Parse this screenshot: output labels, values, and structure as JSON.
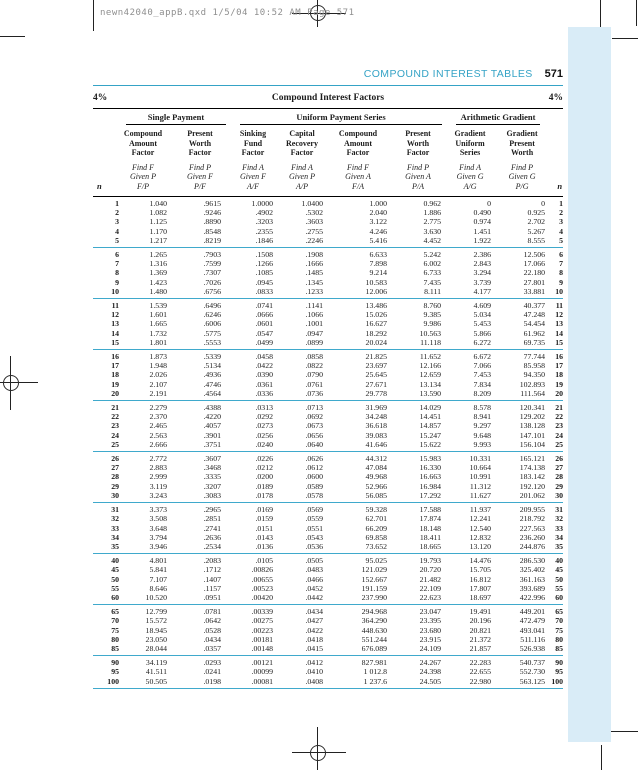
{
  "page": {
    "slug": "newn42040_appB.qxd 1/5/04 10:52 AM Page 571",
    "running_head": "COMPOUND INTEREST TABLES",
    "page_number": "571",
    "rate_left": "4%",
    "rate_right": "4%",
    "table_title": "Compound Interest Factors"
  },
  "colors": {
    "teal_accent": "#35a3c6",
    "separator_teal": "#3fa9cc",
    "sidebar_tab": "#d9ecf7",
    "slug_gray": "#8f8f8f",
    "text": "#1c1c1c"
  },
  "table": {
    "n_label": "n",
    "groups": [
      {
        "label": "Single Payment"
      },
      {
        "label": "Uniform Payment Series"
      },
      {
        "label": "Arithmetic Gradient"
      }
    ],
    "columns": [
      {
        "key": "fp",
        "name": [
          "Compound",
          "Amount",
          "Factor"
        ],
        "find": [
          "Find F",
          "Given P",
          "F/P"
        ]
      },
      {
        "key": "pf",
        "name": [
          "Present",
          "Worth",
          "Factor"
        ],
        "find": [
          "Find P",
          "Given F",
          "P/F"
        ]
      },
      {
        "key": "af",
        "name": [
          "Sinking",
          "Fund",
          "Factor"
        ],
        "find": [
          "Find A",
          "Given F",
          "A/F"
        ]
      },
      {
        "key": "ap",
        "name": [
          "Capital",
          "Recovery",
          "Factor"
        ],
        "find": [
          "Find A",
          "Given P",
          "A/P"
        ]
      },
      {
        "key": "fa",
        "name": [
          "Compound",
          "Amount",
          "Factor"
        ],
        "find": [
          "Find F",
          "Given A",
          "F/A"
        ]
      },
      {
        "key": "pa",
        "name": [
          "Present",
          "Worth",
          "Factor"
        ],
        "find": [
          "Find P",
          "Given A",
          "P/A"
        ]
      },
      {
        "key": "ag",
        "name": [
          "Gradient",
          "Uniform",
          "Series"
        ],
        "find": [
          "Find A",
          "Given G",
          "A/G"
        ]
      },
      {
        "key": "pg",
        "name": [
          "Gradient",
          "Present",
          "Worth"
        ],
        "find": [
          "Find P",
          "Given G",
          "P/G"
        ]
      }
    ],
    "row_groups": [
      [
        [
          "1",
          "1.040",
          ".9615",
          "1.0000",
          "1.0400",
          "1.000",
          "0.962",
          "0",
          "0"
        ],
        [
          "2",
          "1.082",
          ".9246",
          ".4902",
          ".5302",
          "2.040",
          "1.886",
          "0.490",
          "0.925"
        ],
        [
          "3",
          "1.125",
          ".8890",
          ".3203",
          ".3603",
          "3.122",
          "2.775",
          "0.974",
          "2.702"
        ],
        [
          "4",
          "1.170",
          ".8548",
          ".2355",
          ".2755",
          "4.246",
          "3.630",
          "1.451",
          "5.267"
        ],
        [
          "5",
          "1.217",
          ".8219",
          ".1846",
          ".2246",
          "5.416",
          "4.452",
          "1.922",
          "8.555"
        ]
      ],
      [
        [
          "6",
          "1.265",
          ".7903",
          ".1508",
          ".1908",
          "6.633",
          "5.242",
          "2.386",
          "12.506"
        ],
        [
          "7",
          "1.316",
          ".7599",
          ".1266",
          ".1666",
          "7.898",
          "6.002",
          "2.843",
          "17.066"
        ],
        [
          "8",
          "1.369",
          ".7307",
          ".1085",
          ".1485",
          "9.214",
          "6.733",
          "3.294",
          "22.180"
        ],
        [
          "9",
          "1.423",
          ".7026",
          ".0945",
          ".1345",
          "10.583",
          "7.435",
          "3.739",
          "27.801"
        ],
        [
          "10",
          "1.480",
          ".6756",
          ".0833",
          ".1233",
          "12.006",
          "8.111",
          "4.177",
          "33.881"
        ]
      ],
      [
        [
          "11",
          "1.539",
          ".6496",
          ".0741",
          ".1141",
          "13.486",
          "8.760",
          "4.609",
          "40.377"
        ],
        [
          "12",
          "1.601",
          ".6246",
          ".0666",
          ".1066",
          "15.026",
          "9.385",
          "5.034",
          "47.248"
        ],
        [
          "13",
          "1.665",
          ".6006",
          ".0601",
          ".1001",
          "16.627",
          "9.986",
          "5.453",
          "54.454"
        ],
        [
          "14",
          "1.732",
          ".5775",
          ".0547",
          ".0947",
          "18.292",
          "10.563",
          "5.866",
          "61.962"
        ],
        [
          "15",
          "1.801",
          ".5553",
          ".0499",
          ".0899",
          "20.024",
          "11.118",
          "6.272",
          "69.735"
        ]
      ],
      [
        [
          "16",
          "1.873",
          ".5339",
          ".0458",
          ".0858",
          "21.825",
          "11.652",
          "6.672",
          "77.744"
        ],
        [
          "17",
          "1.948",
          ".5134",
          ".0422",
          ".0822",
          "23.697",
          "12.166",
          "7.066",
          "85.958"
        ],
        [
          "18",
          "2.026",
          ".4936",
          ".0390",
          ".0790",
          "25.645",
          "12.659",
          "7.453",
          "94.350"
        ],
        [
          "19",
          "2.107",
          ".4746",
          ".0361",
          ".0761",
          "27.671",
          "13.134",
          "7.834",
          "102.893"
        ],
        [
          "20",
          "2.191",
          ".4564",
          ".0336",
          ".0736",
          "29.778",
          "13.590",
          "8.209",
          "111.564"
        ]
      ],
      [
        [
          "21",
          "2.279",
          ".4388",
          ".0313",
          ".0713",
          "31.969",
          "14.029",
          "8.578",
          "120.341"
        ],
        [
          "22",
          "2.370",
          ".4220",
          ".0292",
          ".0692",
          "34.248",
          "14.451",
          "8.941",
          "129.202"
        ],
        [
          "23",
          "2.465",
          ".4057",
          ".0273",
          ".0673",
          "36.618",
          "14.857",
          "9.297",
          "138.128"
        ],
        [
          "24",
          "2.563",
          ".3901",
          ".0256",
          ".0656",
          "39.083",
          "15.247",
          "9.648",
          "147.101"
        ],
        [
          "25",
          "2.666",
          ".3751",
          ".0240",
          ".0640",
          "41.646",
          "15.622",
          "9.993",
          "156.104"
        ]
      ],
      [
        [
          "26",
          "2.772",
          ".3607",
          ".0226",
          ".0626",
          "44.312",
          "15.983",
          "10.331",
          "165.121"
        ],
        [
          "27",
          "2.883",
          ".3468",
          ".0212",
          ".0612",
          "47.084",
          "16.330",
          "10.664",
          "174.138"
        ],
        [
          "28",
          "2.999",
          ".3335",
          ".0200",
          ".0600",
          "49.968",
          "16.663",
          "10.991",
          "183.142"
        ],
        [
          "29",
          "3.119",
          ".3207",
          ".0189",
          ".0589",
          "52.966",
          "16.984",
          "11.312",
          "192.120"
        ],
        [
          "30",
          "3.243",
          ".3083",
          ".0178",
          ".0578",
          "56.085",
          "17.292",
          "11.627",
          "201.062"
        ]
      ],
      [
        [
          "31",
          "3.373",
          ".2965",
          ".0169",
          ".0569",
          "59.328",
          "17.588",
          "11.937",
          "209.955"
        ],
        [
          "32",
          "3.508",
          ".2851",
          ".0159",
          ".0559",
          "62.701",
          "17.874",
          "12.241",
          "218.792"
        ],
        [
          "33",
          "3.648",
          ".2741",
          ".0151",
          ".0551",
          "66.209",
          "18.148",
          "12.540",
          "227.563"
        ],
        [
          "34",
          "3.794",
          ".2636",
          ".0143",
          ".0543",
          "69.858",
          "18.411",
          "12.832",
          "236.260"
        ],
        [
          "35",
          "3.946",
          ".2534",
          ".0136",
          ".0536",
          "73.652",
          "18.665",
          "13.120",
          "244.876"
        ]
      ],
      [
        [
          "40",
          "4.801",
          ".2083",
          ".0105",
          ".0505",
          "95.025",
          "19.793",
          "14.476",
          "286.530"
        ],
        [
          "45",
          "5.841",
          ".1712",
          ".00826",
          ".0483",
          "121.029",
          "20.720",
          "15.705",
          "325.402"
        ],
        [
          "50",
          "7.107",
          ".1407",
          ".00655",
          ".0466",
          "152.667",
          "21.482",
          "16.812",
          "361.163"
        ],
        [
          "55",
          "8.646",
          ".1157",
          ".00523",
          ".0452",
          "191.159",
          "22.109",
          "17.807",
          "393.689"
        ],
        [
          "60",
          "10.520",
          ".0951",
          ".00420",
          ".0442",
          "237.990",
          "22.623",
          "18.697",
          "422.996"
        ]
      ],
      [
        [
          "65",
          "12.799",
          ".0781",
          ".00339",
          ".0434",
          "294.968",
          "23.047",
          "19.491",
          "449.201"
        ],
        [
          "70",
          "15.572",
          ".0642",
          ".00275",
          ".0427",
          "364.290",
          "23.395",
          "20.196",
          "472.479"
        ],
        [
          "75",
          "18.945",
          ".0528",
          ".00223",
          ".0422",
          "448.630",
          "23.680",
          "20.821",
          "493.041"
        ],
        [
          "80",
          "23.050",
          ".0434",
          ".00181",
          ".0418",
          "551.244",
          "23.915",
          "21.372",
          "511.116"
        ],
        [
          "85",
          "28.044",
          ".0357",
          ".00148",
          ".0415",
          "676.089",
          "24.109",
          "21.857",
          "526.938"
        ]
      ],
      [
        [
          "90",
          "34.119",
          ".0293",
          ".00121",
          ".0412",
          "827.981",
          "24.267",
          "22.283",
          "540.737"
        ],
        [
          "95",
          "41.511",
          ".0241",
          ".00099",
          ".0410",
          "1 012.8",
          "24.398",
          "22.655",
          "552.730"
        ],
        [
          "100",
          "50.505",
          ".0198",
          ".00081",
          ".0408",
          "1 237.6",
          "24.505",
          "22.980",
          "563.125"
        ]
      ]
    ]
  }
}
